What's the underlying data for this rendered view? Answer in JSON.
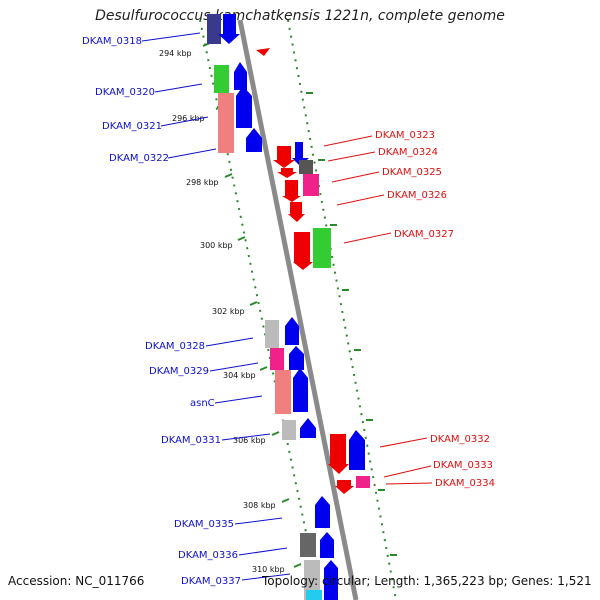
{
  "title": "Desulfurococcus kamchatkensis 1221n, complete genome",
  "footer": {
    "accession": "Accession: NC_011766",
    "topology": "Topology: circular; Length: 1,365,223 bp; Genes: 1,521"
  },
  "ticks": [
    {
      "label": "294 kbp",
      "kbp": 294
    },
    {
      "label": "296 kbp",
      "kbp": 296
    },
    {
      "label": "298 kbp",
      "kbp": 298
    },
    {
      "label": "300 kbp",
      "kbp": 300
    },
    {
      "label": "302 kbp",
      "kbp": 302
    },
    {
      "label": "304 kbp",
      "kbp": 304
    },
    {
      "label": "306 kbp",
      "kbp": 306
    },
    {
      "label": "308 kbp",
      "kbp": 308
    },
    {
      "label": "310 kbp",
      "kbp": 310
    }
  ],
  "genes_left": [
    {
      "name": "DKAM_0318",
      "color": "#1010cc"
    },
    {
      "name": "DKAM_0320",
      "color": "#1010cc"
    },
    {
      "name": "DKAM_0321",
      "color": "#1010cc"
    },
    {
      "name": "DKAM_0322",
      "color": "#1010cc"
    },
    {
      "name": "DKAM_0328",
      "color": "#1010cc"
    },
    {
      "name": "DKAM_0329",
      "color": "#1010cc"
    },
    {
      "name": "asnC",
      "color": "#1010cc"
    },
    {
      "name": "DKAM_0331",
      "color": "#1010cc"
    },
    {
      "name": "DKAM_0335",
      "color": "#1010cc"
    },
    {
      "name": "DKAM_0336",
      "color": "#1010cc"
    },
    {
      "name": "DKAM_0337",
      "color": "#1010cc"
    }
  ],
  "genes_right": [
    {
      "name": "DKAM_0323",
      "color": "#dd1111"
    },
    {
      "name": "DKAM_0324",
      "color": "#dd1111"
    },
    {
      "name": "DKAM_0325",
      "color": "#dd1111"
    },
    {
      "name": "DKAM_0326",
      "color": "#dd1111"
    },
    {
      "name": "DKAM_0327",
      "color": "#dd1111"
    },
    {
      "name": "DKAM_0332",
      "color": "#dd1111"
    },
    {
      "name": "DKAM_0333",
      "color": "#dd1111"
    },
    {
      "name": "DKAM_0334",
      "color": "#dd1111"
    }
  ],
  "colors": {
    "backbone": "#888888",
    "forward_strand": "#0000ee",
    "reverse_strand": "#ee0000",
    "gc_skew_dots": "#2a8a2a"
  }
}
